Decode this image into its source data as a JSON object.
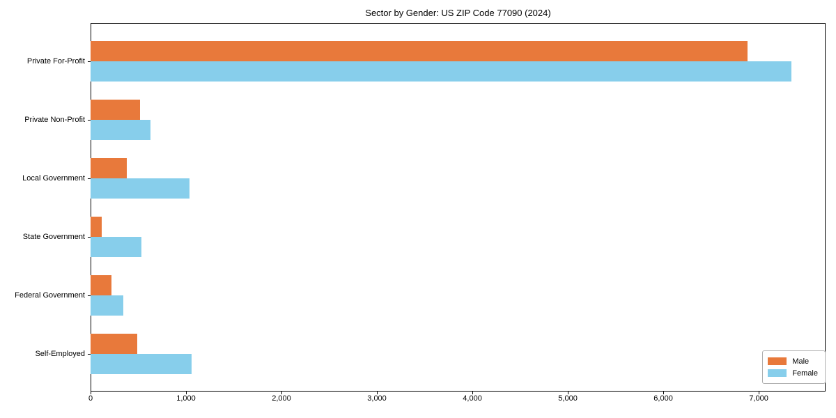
{
  "chart_data": {
    "type": "bar",
    "orientation": "horizontal",
    "title": "Sector by Gender: US ZIP Code 77090 (2024)",
    "categories": [
      "Private For-Profit",
      "Private Non-Profit",
      "Local Government",
      "State Government",
      "Federal Government",
      "Self-Employed"
    ],
    "series": [
      {
        "name": "Male",
        "color": "#e8793b",
        "values": [
          6880,
          520,
          380,
          120,
          220,
          490
        ]
      },
      {
        "name": "Female",
        "color": "#87ceeb",
        "values": [
          7340,
          630,
          1040,
          530,
          340,
          1060
        ]
      }
    ],
    "xlabel": "",
    "ylabel": "",
    "xlim": [
      0,
      7700
    ],
    "xticks": [
      0,
      1000,
      2000,
      3000,
      4000,
      5000,
      6000,
      7000
    ],
    "xtick_labels": [
      "0",
      "1,000",
      "2,000",
      "3,000",
      "4,000",
      "5,000",
      "6,000",
      "7,000"
    ],
    "grid": false,
    "legend_position": "lower right",
    "legend_entries": [
      "Male",
      "Female"
    ]
  }
}
